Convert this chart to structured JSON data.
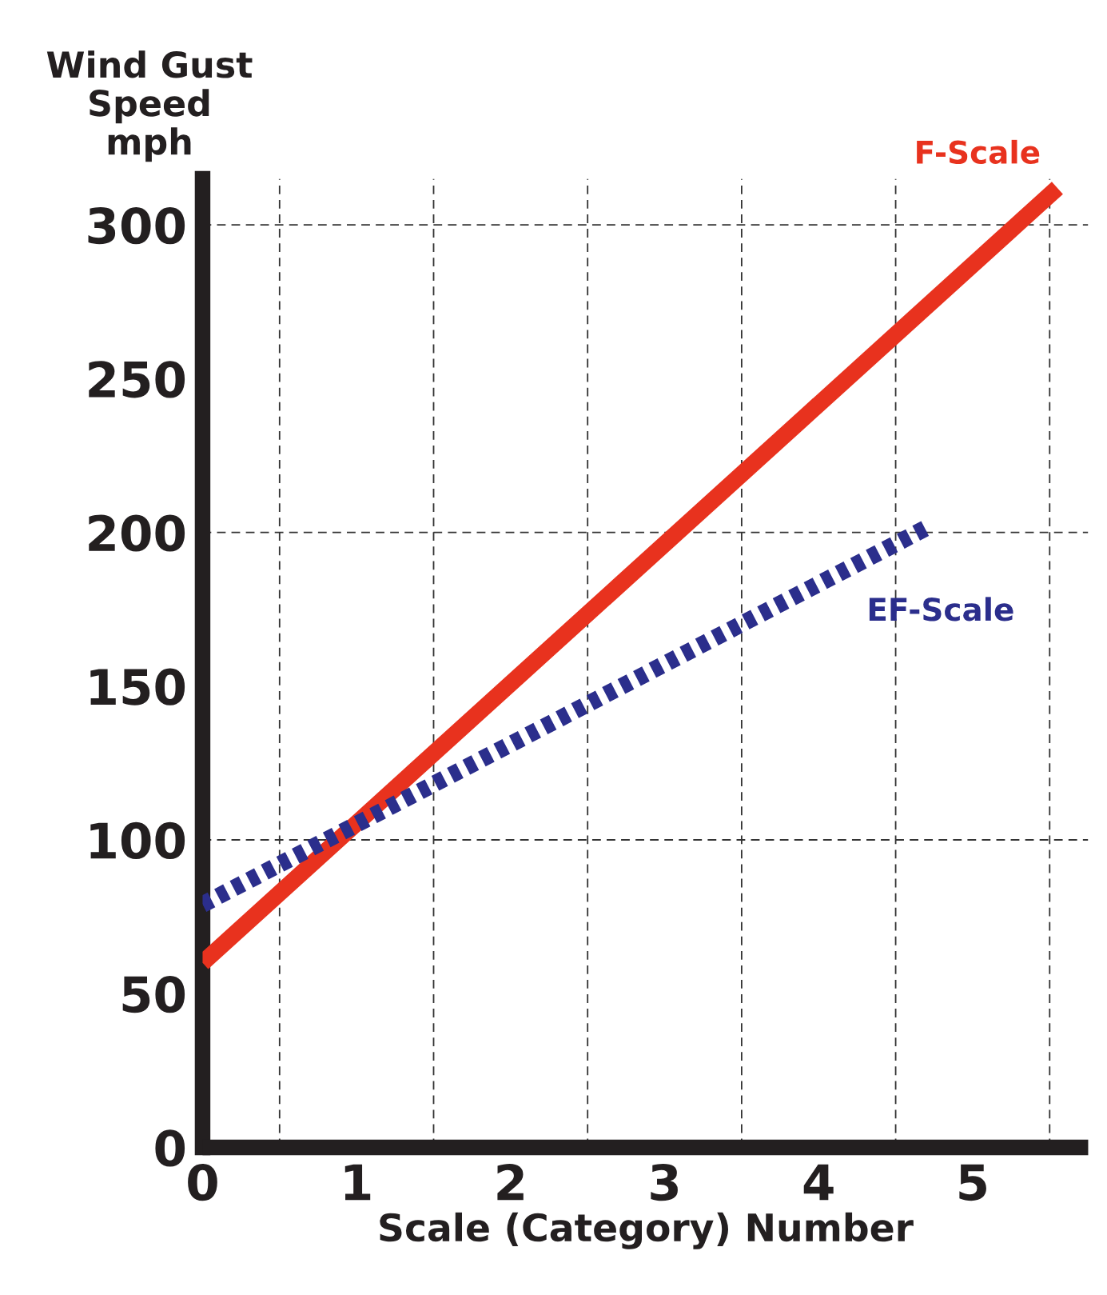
{
  "chart_data": {
    "type": "line",
    "ylabel": "Wind Gust\nSpeed\nmph",
    "xlabel": "Scale (Category) Number",
    "xlim": [
      0,
      5.75
    ],
    "ylim": [
      0,
      315
    ],
    "xticks": [
      0,
      1,
      2,
      3,
      4,
      5
    ],
    "yticks": [
      0,
      50,
      100,
      150,
      200,
      250,
      300
    ],
    "grid": false,
    "series": [
      {
        "name": "F-Scale",
        "color": "#e8321e",
        "line_style": "solid",
        "x": [
          0,
          5.55
        ],
        "values": [
          60,
          312
        ]
      },
      {
        "name": "EF-Scale",
        "color": "#2b2e8c",
        "line_style": "dotted",
        "x": [
          0,
          4.72
        ],
        "values": [
          79,
          202
        ]
      }
    ],
    "ref_lines": [
      {
        "axis": "y",
        "value": 100,
        "line_style": "dashed",
        "color": "#333333"
      },
      {
        "axis": "y",
        "value": 200,
        "line_style": "dashed",
        "color": "#333333"
      },
      {
        "axis": "y",
        "value": 300,
        "line_style": "dashed",
        "color": "#333333"
      },
      {
        "axis": "x",
        "value": 0.5,
        "line_style": "dashed",
        "color": "#333333"
      },
      {
        "axis": "x",
        "value": 1.5,
        "line_style": "dashed",
        "color": "#333333"
      },
      {
        "axis": "x",
        "value": 2.5,
        "line_style": "dashed",
        "color": "#333333"
      },
      {
        "axis": "x",
        "value": 3.5,
        "line_style": "dashed",
        "color": "#333333"
      },
      {
        "axis": "x",
        "value": 4.5,
        "line_style": "dashed",
        "color": "#333333"
      },
      {
        "axis": "x",
        "value": 5.5,
        "line_style": "dashed",
        "color": "#333333"
      }
    ]
  }
}
